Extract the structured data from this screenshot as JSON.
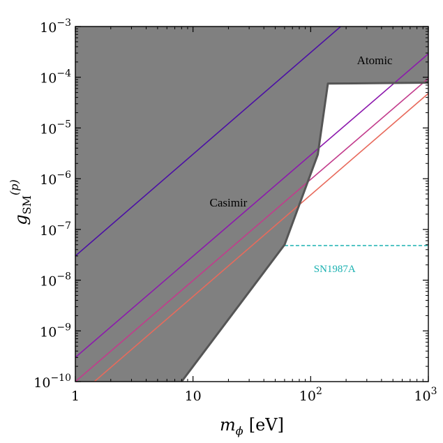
{
  "chart_data": {
    "type": "line",
    "title": "",
    "xlabel_symbol": "m",
    "xlabel_sub": "ϕ",
    "xlabel_unit": "[eV]",
    "ylabel_symbol": "g",
    "ylabel_sub": "SM",
    "ylabel_sup": "(p)",
    "x_scale": "log",
    "y_scale": "log",
    "xlim": [
      1,
      1000
    ],
    "ylim": [
      1e-10,
      0.001
    ],
    "x_ticks": [
      {
        "value": 1,
        "base": "1",
        "exp": ""
      },
      {
        "value": 10,
        "base": "10",
        "exp": ""
      },
      {
        "value": 100,
        "base": "10",
        "exp": "2"
      },
      {
        "value": 1000,
        "base": "10",
        "exp": "3"
      }
    ],
    "y_ticks": [
      {
        "value": 1e-10,
        "base": "10",
        "exp": "−10"
      },
      {
        "value": 1e-09,
        "base": "10",
        "exp": "−9"
      },
      {
        "value": 1e-08,
        "base": "10",
        "exp": "−8"
      },
      {
        "value": 1e-07,
        "base": "10",
        "exp": "−7"
      },
      {
        "value": 1e-06,
        "base": "10",
        "exp": "−6"
      },
      {
        "value": 1e-05,
        "base": "10",
        "exp": "−5"
      },
      {
        "value": 0.0001,
        "base": "10",
        "exp": "−4"
      },
      {
        "value": 0.001,
        "base": "10",
        "exp": "−3"
      }
    ],
    "grid": false,
    "excluded_region": {
      "fill_color": "#808080",
      "edge_color": "#555555",
      "boundary": [
        [
          8,
          1e-10
        ],
        [
          60,
          5e-08
        ],
        [
          115,
          3e-06
        ],
        [
          140,
          7.5e-05
        ],
        [
          1000,
          7.8e-05
        ]
      ]
    },
    "region_labels": [
      {
        "text": "Casimir",
        "x": 20,
        "y": 3.4e-07
      },
      {
        "text": "Atomic",
        "x": 350,
        "y": 0.00022
      }
    ],
    "series": [
      {
        "color": "#4b0fa5",
        "points": [
          [
            1,
            3e-08
          ],
          [
            180,
            0.001
          ]
        ]
      },
      {
        "color": "#8c18ad",
        "points": [
          [
            1,
            3e-10
          ],
          [
            1000,
            0.00029
          ]
        ]
      },
      {
        "color": "#c23b8c",
        "points": [
          [
            1,
            1e-10
          ],
          [
            1000,
            9.5e-05
          ]
        ]
      },
      {
        "color": "#e86a5c",
        "points": [
          [
            1.45,
            1e-10
          ],
          [
            1000,
            4.8e-05
          ]
        ]
      }
    ],
    "reference_line": {
      "label": "SN1987A",
      "color": "#1ab1b1",
      "style": "dashed",
      "y": 4.8e-08,
      "x_range": [
        60,
        1000
      ],
      "label_x": 160,
      "label_y": 1.7e-08
    }
  }
}
